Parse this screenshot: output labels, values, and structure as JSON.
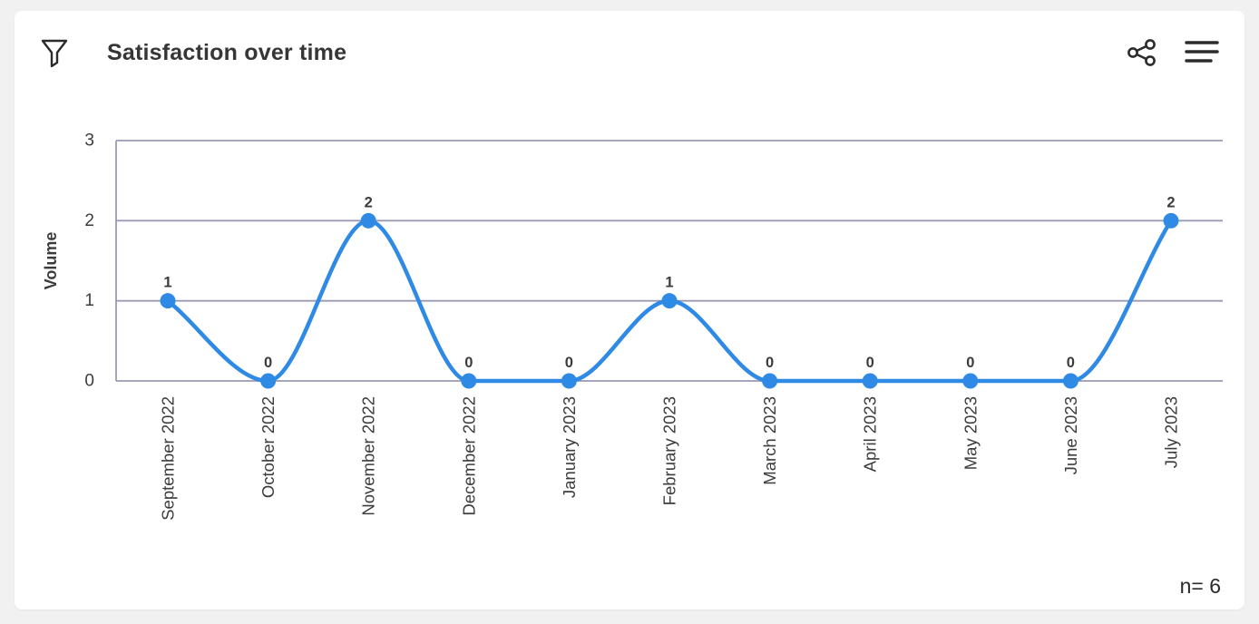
{
  "header": {
    "title": "Satisfaction over time",
    "icons": {
      "left": "filter-icon",
      "right": [
        "share-icon",
        "menu-icon"
      ]
    }
  },
  "chart_data": {
    "type": "line",
    "title": "Satisfaction over time",
    "categories": [
      "September 2022",
      "October 2022",
      "November 2022",
      "December 2022",
      "January 2023",
      "February 2023",
      "March 2023",
      "April 2023",
      "May 2023",
      "June 2023",
      "July 2023"
    ],
    "values": [
      1,
      0,
      2,
      0,
      0,
      1,
      0,
      0,
      0,
      0,
      2
    ],
    "xlabel": "",
    "ylabel": "Volume",
    "ylim": [
      0,
      3
    ],
    "yticks": [
      0,
      1,
      2,
      3
    ],
    "grid": true,
    "legend": "none",
    "smooth": true,
    "data_labels": true,
    "annotations": [
      "n= 6"
    ]
  },
  "colors": {
    "line": "#2e8ae4",
    "grid": "#9a9ab4",
    "axis_text": "#3c3c3c",
    "label_text": "#3b3b3b",
    "title_text": "#363636",
    "icon": "#2b2b2b",
    "card_bg": "#ffffff",
    "page_bg": "#f1f1f2"
  }
}
